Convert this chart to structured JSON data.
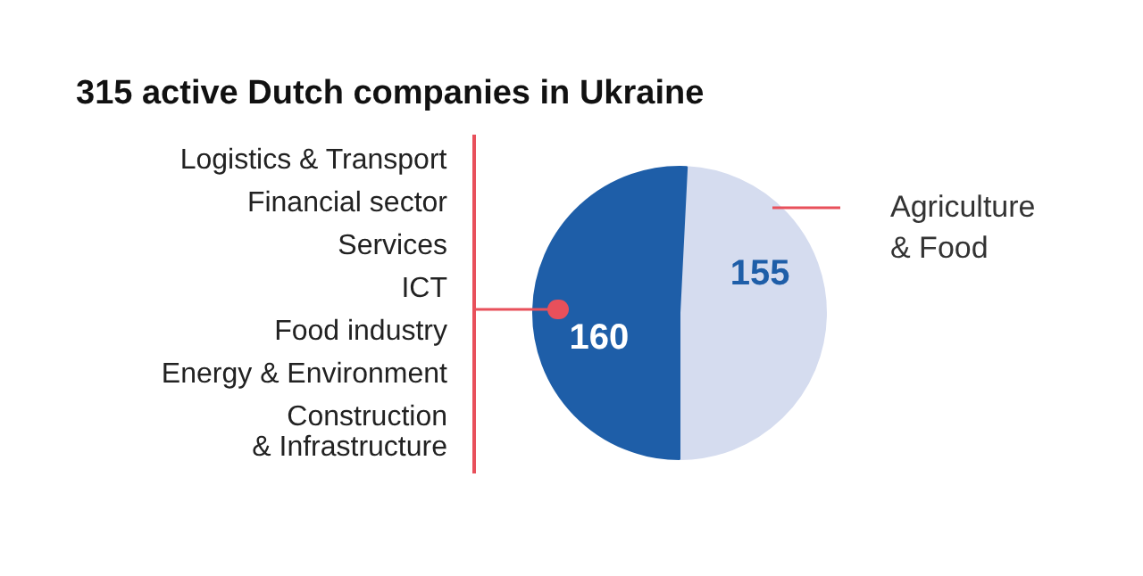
{
  "chart_data": {
    "type": "pie",
    "title": "315 active Dutch companies in Ukraine",
    "categories": [
      "Agriculture & Food",
      null
    ],
    "values": [
      155,
      160
    ],
    "colors": [
      "#d5dcef",
      "#1e5ea8"
    ],
    "data_labels": true,
    "annotations": [
      "Logistics & Transport",
      "Financial sector",
      "Services",
      "ICT",
      "Food industry",
      "Energy & Environment",
      "Construction & Infrastructure"
    ]
  }
}
